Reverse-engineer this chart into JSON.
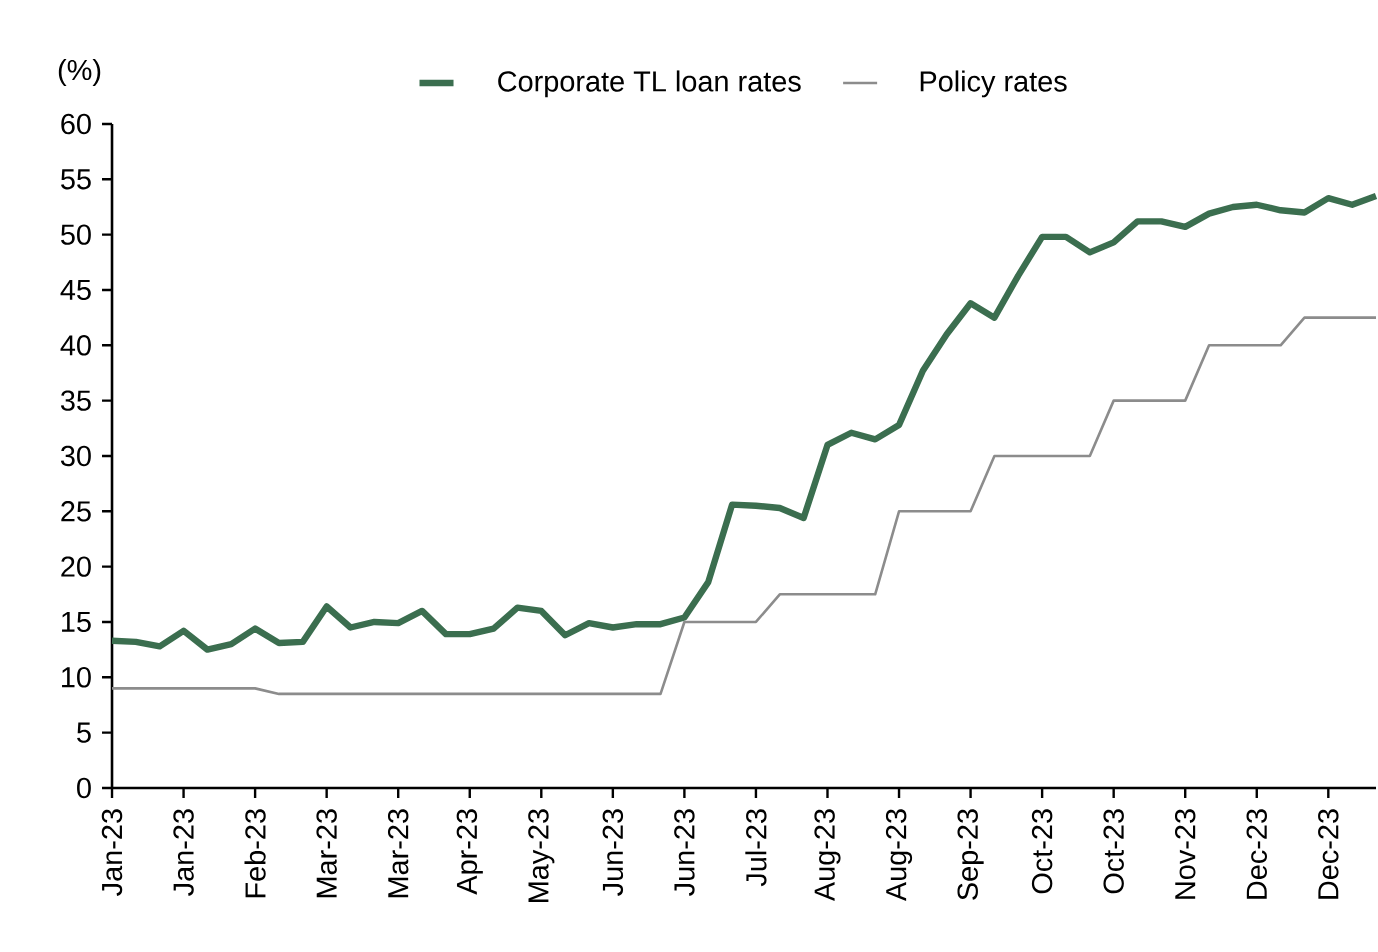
{
  "chart_data": {
    "type": "line",
    "ylabel": "(%)",
    "categories": [
      "Jan-23",
      null,
      null,
      "Jan-23",
      null,
      null,
      "Feb-23",
      null,
      null,
      "Mar-23",
      null,
      null,
      "Mar-23",
      null,
      null,
      "Apr-23",
      null,
      null,
      "May-23",
      null,
      null,
      "Jun-23",
      null,
      null,
      "Jun-23",
      null,
      null,
      "Jul-23",
      null,
      null,
      "Aug-23",
      null,
      null,
      "Aug-23",
      null,
      null,
      "Sep-23",
      null,
      null,
      "Oct-23",
      null,
      null,
      "Oct-23",
      null,
      null,
      "Nov-23",
      null,
      null,
      "Dec-23",
      null,
      null,
      "Dec-23",
      null,
      null
    ],
    "series": [
      {
        "name": "Corporate TL loan rates",
        "color": "#3b6e4f",
        "values": [
          13.3,
          13.2,
          12.8,
          14.2,
          12.5,
          13.0,
          14.4,
          13.1,
          13.2,
          16.4,
          14.5,
          15.0,
          14.9,
          16.0,
          13.9,
          13.9,
          14.4,
          16.3,
          16.0,
          13.8,
          14.9,
          14.5,
          14.8,
          14.8,
          15.4,
          18.6,
          25.6,
          25.5,
          25.3,
          24.4,
          31.0,
          32.1,
          31.5,
          32.8,
          37.7,
          41.0,
          43.8,
          42.5,
          46.3,
          49.8,
          49.8,
          48.4,
          49.3,
          51.2,
          51.2,
          50.7,
          51.9,
          52.5,
          52.7,
          52.2,
          52.0,
          53.3,
          52.7,
          53.5
        ]
      },
      {
        "name": "Policy rates",
        "color": "#8c8c8c",
        "values": [
          9,
          9,
          9,
          9,
          9,
          9,
          9,
          8.5,
          8.5,
          8.5,
          8.5,
          8.5,
          8.5,
          8.5,
          8.5,
          8.5,
          8.5,
          8.5,
          8.5,
          8.5,
          8.5,
          8.5,
          8.5,
          8.5,
          15,
          15,
          15,
          15,
          17.5,
          17.5,
          17.5,
          17.5,
          17.5,
          25,
          25,
          25,
          25,
          30,
          30,
          30,
          30,
          30,
          35,
          35,
          35,
          35,
          40,
          40,
          40,
          40,
          42.5,
          42.5,
          42.5,
          42.5
        ]
      }
    ],
    "ylim": [
      0,
      60
    ],
    "yticks": [
      0,
      5,
      10,
      15,
      20,
      25,
      30,
      35,
      40,
      45,
      50,
      55,
      60
    ],
    "legend": "top",
    "grid": false,
    "marker": "none",
    "line_style": "solid"
  }
}
